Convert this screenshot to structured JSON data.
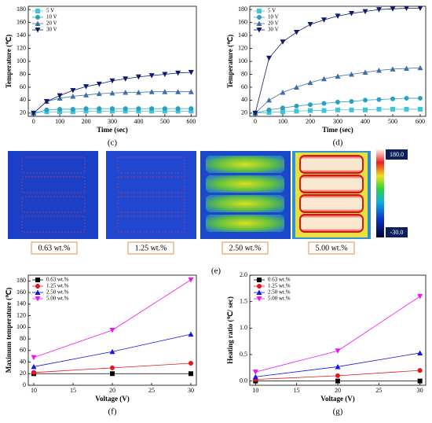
{
  "chart_data": [
    {
      "type": "line",
      "panel_label": "(c)",
      "xlabel": "Time (sec)",
      "ylabel": "Temperature (℃)",
      "x": [
        0,
        50,
        100,
        150,
        200,
        250,
        300,
        350,
        400,
        450,
        500,
        550,
        600
      ],
      "xlim": [
        -20,
        620
      ],
      "xticks": [
        0,
        100,
        200,
        300,
        400,
        500,
        600
      ],
      "ylim": [
        15,
        185
      ],
      "yticks": [
        20,
        40,
        60,
        80,
        100,
        120,
        140,
        160,
        180
      ],
      "legend": "upper left",
      "series": [
        {
          "name": "5 V",
          "color": "#3fc4d8",
          "marker": "square",
          "values": [
            20,
            22,
            22,
            22,
            23,
            23,
            23,
            23,
            23,
            23,
            23,
            23,
            23
          ]
        },
        {
          "name": "10 V",
          "color": "#2b9fbf",
          "marker": "circle",
          "values": [
            20,
            25,
            26,
            26,
            27,
            27,
            27,
            27,
            27,
            27,
            27,
            27,
            27
          ]
        },
        {
          "name": "20 V",
          "color": "#3d6ea8",
          "marker": "triangle-up",
          "values": [
            20,
            38,
            43,
            46,
            48,
            50,
            51,
            52,
            52,
            53,
            53,
            53,
            53
          ]
        },
        {
          "name": "30 V",
          "color": "#101a6b",
          "marker": "triangle-down",
          "values": [
            20,
            38,
            47,
            55,
            61,
            65,
            70,
            73,
            76,
            78,
            80,
            82,
            83
          ]
        }
      ]
    },
    {
      "type": "line",
      "panel_label": "(d)",
      "xlabel": "Time (sec)",
      "ylabel": "Temperature (℃)",
      "x": [
        0,
        50,
        100,
        150,
        200,
        250,
        300,
        350,
        400,
        450,
        500,
        550,
        600
      ],
      "xlim": [
        -20,
        620
      ],
      "xticks": [
        0,
        100,
        200,
        300,
        400,
        500,
        600
      ],
      "ylim": [
        15,
        185
      ],
      "yticks": [
        20,
        40,
        60,
        80,
        100,
        120,
        140,
        160,
        180
      ],
      "legend": "upper left",
      "series": [
        {
          "name": "5 V",
          "color": "#3fc4d8",
          "marker": "square",
          "values": [
            20,
            21,
            22,
            23,
            24,
            24,
            25,
            25,
            25,
            26,
            26,
            26,
            26
          ]
        },
        {
          "name": "10 V",
          "color": "#2b9fbf",
          "marker": "circle",
          "values": [
            20,
            25,
            28,
            31,
            33,
            35,
            37,
            38,
            40,
            41,
            42,
            43,
            43
          ]
        },
        {
          "name": "20 V",
          "color": "#3d6ea8",
          "marker": "triangle-up",
          "values": [
            20,
            40,
            52,
            60,
            67,
            73,
            77,
            80,
            83,
            86,
            88,
            89,
            90
          ]
        },
        {
          "name": "30 V",
          "color": "#101a6b",
          "marker": "triangle-down",
          "values": [
            20,
            105,
            130,
            145,
            157,
            164,
            170,
            174,
            177,
            180,
            181,
            182,
            182
          ]
        }
      ]
    },
    {
      "type": "line",
      "panel_label": "(f)",
      "xlabel": "Voltage (V)",
      "ylabel": "Maximum temperature (℃)",
      "x": [
        10,
        20,
        30
      ],
      "xlim": [
        9.3,
        30.7
      ],
      "xticks": [
        10,
        15,
        20,
        25,
        30
      ],
      "ylim": [
        0,
        190
      ],
      "yticks": [
        0,
        20,
        40,
        60,
        80,
        100,
        120,
        140,
        160,
        180
      ],
      "legend": "upper left",
      "series": [
        {
          "name": "0.63 wt.%",
          "color": "#000000",
          "marker": "square",
          "values": [
            20,
            20,
            20
          ]
        },
        {
          "name": "1.25 wt.%",
          "color": "#e8141b",
          "marker": "circle",
          "values": [
            22,
            30,
            38
          ]
        },
        {
          "name": "2.50 wt.%",
          "color": "#1414e8",
          "marker": "triangle-up",
          "values": [
            32,
            58,
            88
          ]
        },
        {
          "name": "5.00 wt.%",
          "color": "#f014f0",
          "marker": "triangle-down",
          "values": [
            48,
            95,
            182
          ]
        }
      ]
    },
    {
      "type": "line",
      "panel_label": "(g)",
      "xlabel": "Voltage (V)",
      "ylabel": "Heating ratio (℃/ sec)",
      "x": [
        10,
        20,
        30
      ],
      "xlim": [
        9.3,
        30.7
      ],
      "xticks": [
        10,
        15,
        20,
        25,
        30
      ],
      "ylim": [
        -0.08,
        2.0
      ],
      "yticks": [
        {
          "value": 0,
          "label": "0.0"
        },
        {
          "value": 0.5,
          "label": "0.5"
        },
        {
          "value": 1,
          "label": "1.0"
        },
        {
          "value": 1.5,
          "label": "1.5"
        },
        {
          "value": 2,
          "label": "2.0"
        }
      ],
      "legend": "upper left",
      "series": [
        {
          "name": "0.63 wt.%",
          "color": "#000000",
          "marker": "square",
          "values": [
            0,
            0,
            0
          ]
        },
        {
          "name": "1.25 wt.%",
          "color": "#e8141b",
          "marker": "circle",
          "values": [
            0.03,
            0.1,
            0.2
          ]
        },
        {
          "name": "2.50 wt.%",
          "color": "#1414e8",
          "marker": "triangle-up",
          "values": [
            0.08,
            0.27,
            0.53
          ]
        },
        {
          "name": "5.00 wt.%",
          "color": "#f014f0",
          "marker": "triangle-down",
          "values": [
            0.17,
            0.57,
            1.6
          ]
        }
      ]
    }
  ],
  "thermal": {
    "panel_label": "(e)",
    "captions": [
      "0.63 wt.%",
      "1.25 wt.%",
      "2.50 wt.%",
      "5.00 wt.%"
    ],
    "colorbar": {
      "max": {
        "value": 180,
        "label": "180.0"
      },
      "min": {
        "value": -30,
        "label": "-30.0"
      }
    }
  }
}
